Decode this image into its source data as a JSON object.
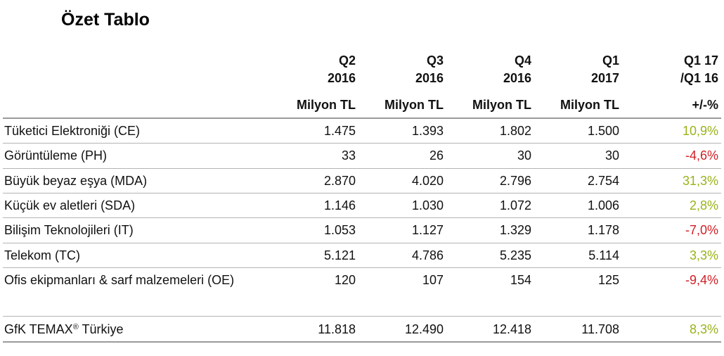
{
  "title": "Özet Tablo",
  "columns": [
    {
      "line1": "Q2",
      "line2": "2016",
      "unit": "Milyon TL"
    },
    {
      "line1": "Q3",
      "line2": "2016",
      "unit": "Milyon TL"
    },
    {
      "line1": "Q4",
      "line2": "2016",
      "unit": "Milyon TL"
    },
    {
      "line1": "Q1",
      "line2": "2017",
      "unit": "Milyon TL"
    },
    {
      "line1": "Q1 17",
      "line2": "/Q1 16",
      "unit": "+/-%"
    }
  ],
  "rows": [
    {
      "label": "Tüketici Elektroniği (CE)",
      "values": [
        "1.475",
        "1.393",
        "1.802",
        "1.500"
      ],
      "change": "10,9%",
      "change_color": "#9bb21a"
    },
    {
      "label": "Görüntüleme (PH)",
      "values": [
        "33",
        "26",
        "30",
        "30"
      ],
      "change": "-4,6%",
      "change_color": "#d21f26"
    },
    {
      "label": "Büyük beyaz eşya (MDA)",
      "values": [
        "2.870",
        "4.020",
        "2.796",
        "2.754"
      ],
      "change": "31,3%",
      "change_color": "#9bb21a"
    },
    {
      "label": "Küçük ev aletleri (SDA)",
      "values": [
        "1.146",
        "1.030",
        "1.072",
        "1.006"
      ],
      "change": "2,8%",
      "change_color": "#9bb21a"
    },
    {
      "label": "Bilişim Teknolojileri (IT)",
      "values": [
        "1.053",
        "1.127",
        "1.329",
        "1.178"
      ],
      "change": "-7,0%",
      "change_color": "#d21f26"
    },
    {
      "label": "Telekom (TC)",
      "values": [
        "5.121",
        "4.786",
        "5.235",
        "5.114"
      ],
      "change": "3,3%",
      "change_color": "#9bb21a"
    },
    {
      "label": "Ofis ekipmanları & sarf malzemeleri (OE)",
      "values": [
        "120",
        "107",
        "154",
        "125"
      ],
      "change": "-9,4%",
      "change_color": "#d21f26"
    }
  ],
  "total": {
    "label_main": "GfK TEMAX",
    "label_sup": "®",
    "label_rest": " Türkiye",
    "values": [
      "11.818",
      "12.490",
      "12.418",
      "11.708"
    ],
    "change": "8,3%",
    "change_color": "#9bb21a"
  }
}
